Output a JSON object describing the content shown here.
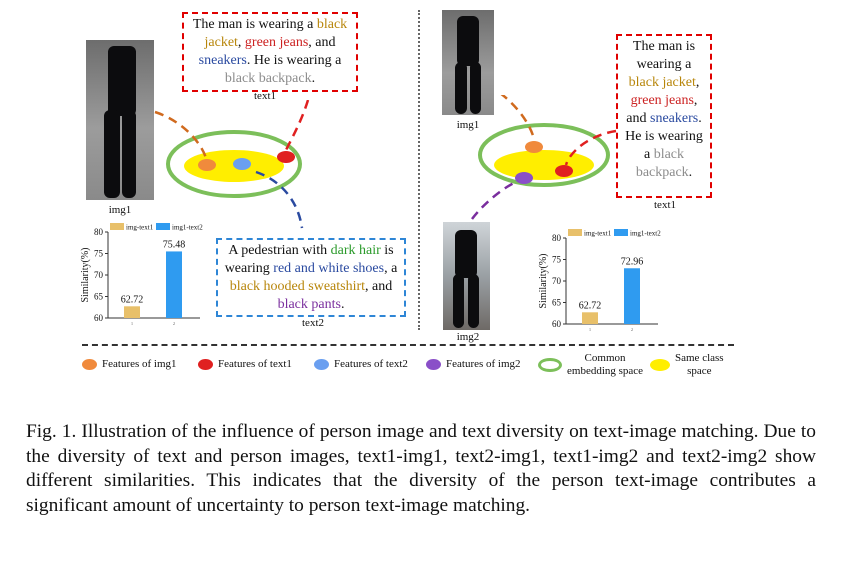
{
  "left_panel": {
    "img_label": "img1",
    "text_box_top": {
      "label": "text1",
      "segments": [
        {
          "t": "The man is wearing a ",
          "c": "plain"
        },
        {
          "t": "black jacket",
          "c": "yellow"
        },
        {
          "t": ", ",
          "c": "plain"
        },
        {
          "t": "green jeans",
          "c": "red"
        },
        {
          "t": ", and ",
          "c": "plain"
        },
        {
          "t": "sneakers",
          "c": "blue"
        },
        {
          "t": ". He is wearing a ",
          "c": "plain"
        },
        {
          "t": "black backpack",
          "c": "gray"
        },
        {
          "t": ".",
          "c": "plain"
        }
      ]
    },
    "text_box_bottom": {
      "label": "text2",
      "segments": [
        {
          "t": "A pedestrian with ",
          "c": "plain"
        },
        {
          "t": "dark hair",
          "c": "green"
        },
        {
          "t": " is wearing ",
          "c": "plain"
        },
        {
          "t": "red and white shoes",
          "c": "blue"
        },
        {
          "t": ", a ",
          "c": "plain"
        },
        {
          "t": "black hooded sweatshirt",
          "c": "yellow"
        },
        {
          "t": ", and ",
          "c": "plain"
        },
        {
          "t": "black pants",
          "c": "purple"
        },
        {
          "t": ".",
          "c": "plain"
        }
      ]
    }
  },
  "right_panel": {
    "img_top_label": "img1",
    "img_bottom_label": "img2",
    "text_box": {
      "label": "text1",
      "segments": [
        {
          "t": "The man is wearing a ",
          "c": "plain"
        },
        {
          "t": "black jacket",
          "c": "yellow"
        },
        {
          "t": ", ",
          "c": "plain"
        },
        {
          "t": "green jeans",
          "c": "red"
        },
        {
          "t": ", and ",
          "c": "plain"
        },
        {
          "t": "sneakers",
          "c": "blue"
        },
        {
          "t": ". He is wearing a ",
          "c": "plain"
        },
        {
          "t": "black backpack",
          "c": "gray"
        },
        {
          "t": ".",
          "c": "plain"
        }
      ]
    }
  },
  "chart_data": [
    {
      "type": "bar",
      "categories": [
        "1",
        "2"
      ],
      "series": [
        {
          "name": "img-text1",
          "values": [
            62.72,
            null
          ]
        },
        {
          "name": "img1-text2",
          "values": [
            null,
            75.48
          ]
        }
      ],
      "values": [
        62.72,
        75.48
      ],
      "value_labels": [
        "62.72",
        "75.48"
      ],
      "legend": [
        "img-text1",
        "img1-text2"
      ],
      "ylabel": "Similarity(%)",
      "yticks": [
        60,
        65,
        70,
        75,
        80
      ],
      "ylim": [
        60,
        80
      ],
      "colors": [
        "#e8c06a",
        "#2f9bf0"
      ]
    },
    {
      "type": "bar",
      "categories": [
        "1",
        "2"
      ],
      "series": [
        {
          "name": "img-text1",
          "values": [
            62.72,
            null
          ]
        },
        {
          "name": "img1-text2",
          "values": [
            null,
            72.96
          ]
        }
      ],
      "values": [
        62.72,
        72.96
      ],
      "value_labels": [
        "62.72",
        "72.96"
      ],
      "legend": [
        "img-text1",
        "img1-text2"
      ],
      "ylabel": "Similarity(%)",
      "yticks": [
        60,
        65,
        70,
        75,
        80
      ],
      "ylim": [
        60,
        80
      ],
      "colors": [
        "#e8c06a",
        "#2f9bf0"
      ]
    }
  ],
  "legend": {
    "items": [
      {
        "label": "Features of img1",
        "color": "#f08a3c"
      },
      {
        "label": "Features of text1",
        "color": "#e02020"
      },
      {
        "label": "Features of text2",
        "color": "#6a9ff0"
      },
      {
        "label": "Features of img2",
        "color": "#8a4fc8"
      },
      {
        "label_lines": [
          "Common",
          "embedding space"
        ],
        "color": "#7cbf5a"
      },
      {
        "label_lines": [
          "Same class",
          "space"
        ],
        "color": "#ffee00"
      }
    ]
  },
  "caption": "Fig. 1.  Illustration of the influence of person image and text diversity on text-image matching. Due to the diversity of text and person images, text1-img1, text2-img1, text1-img2 and text2-img2 show different similarities. This indicates that the diversity of the person text-image contributes a significant amount of uncertainty to person text-image matching."
}
